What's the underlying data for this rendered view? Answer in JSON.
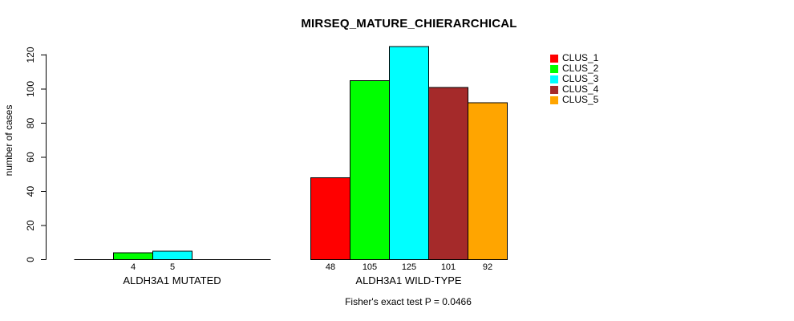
{
  "chart_data": {
    "type": "bar",
    "title": "MIRSEQ_MATURE_CHIERARCHICAL",
    "ylabel": "number of cases",
    "xlabel": "",
    "footnote": "Fisher's exact test P = 0.0466",
    "ylim": [
      0,
      125
    ],
    "yticks": [
      0,
      20,
      40,
      60,
      80,
      100,
      120
    ],
    "grid": "off",
    "categories": [
      "ALDH3A1 MUTATED",
      "ALDH3A1 WILD-TYPE"
    ],
    "series": [
      {
        "name": "CLUS_1",
        "color": "#ff0000",
        "values": [
          0,
          48
        ]
      },
      {
        "name": "CLUS_2",
        "color": "#00ff00",
        "values": [
          4,
          105
        ]
      },
      {
        "name": "CLUS_3",
        "color": "#00ffff",
        "values": [
          5,
          125
        ]
      },
      {
        "name": "CLUS_4",
        "color": "#a52a2a",
        "values": [
          0,
          101
        ]
      },
      {
        "name": "CLUS_5",
        "color": "#ffa500",
        "values": [
          0,
          92
        ]
      }
    ],
    "bar_value_labels": [
      [
        "",
        "4",
        "5",
        "",
        ""
      ],
      [
        "48",
        "105",
        "125",
        "101",
        "92"
      ]
    ],
    "legend": {
      "position": "right",
      "entries": [
        "CLUS_1",
        "CLUS_2",
        "CLUS_3",
        "CLUS_4",
        "CLUS_5"
      ]
    },
    "axis_color": "#000000",
    "text_color": "#000000",
    "background": "#ffffff"
  }
}
